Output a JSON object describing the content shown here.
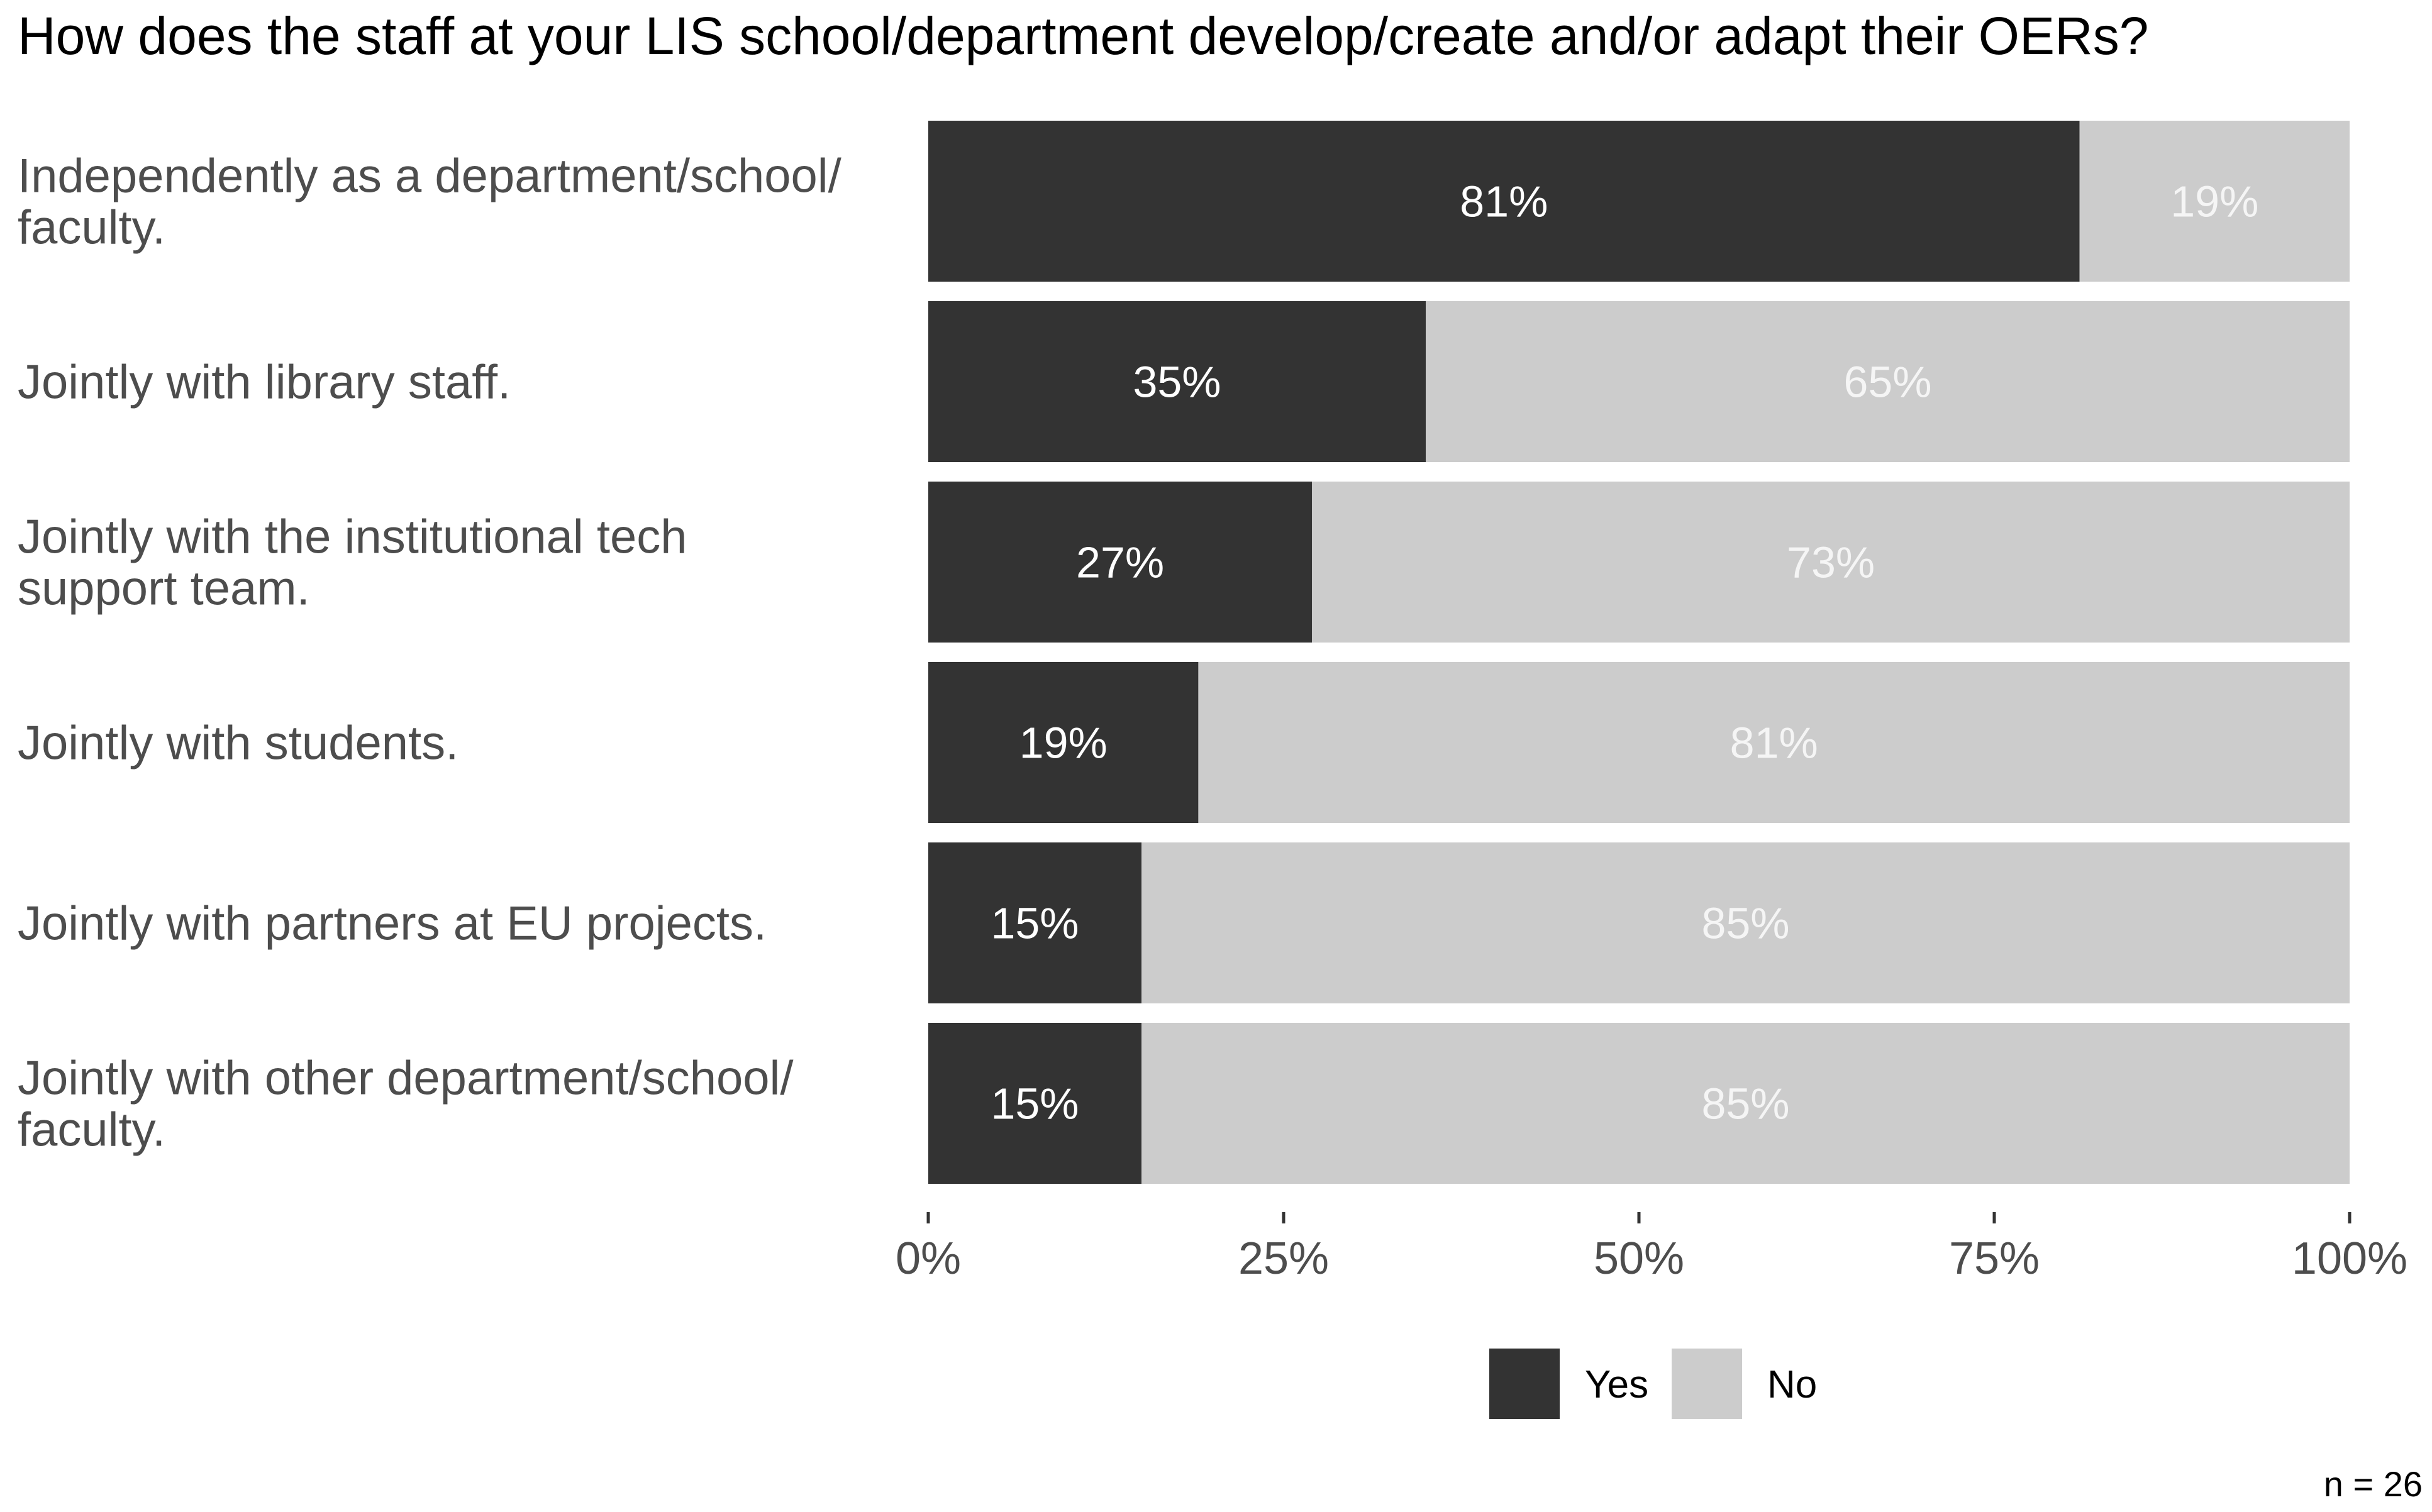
{
  "chart_data": {
    "type": "bar",
    "stacked": true,
    "orientation": "horizontal",
    "title": "How does the staff at your LIS school/department develop/create and/or adapt their OERs?",
    "categories": [
      [
        "Independently as a department/school/",
        "faculty."
      ],
      [
        "Jointly with library staff."
      ],
      [
        "Jointly with the institutional tech",
        "support team."
      ],
      [
        "Jointly with students."
      ],
      [
        "Jointly with partners at EU projects."
      ],
      [
        "Jointly with other department/school/",
        "faculty."
      ]
    ],
    "series": [
      {
        "name": "Yes",
        "color": "#333333",
        "label_color": "#ffffff",
        "values": [
          81,
          35,
          27,
          19,
          15,
          15
        ],
        "labels": [
          "81%",
          "35%",
          "27%",
          "19%",
          "15%",
          "15%"
        ]
      },
      {
        "name": "No",
        "color": "#cccccc",
        "label_color": "#f5f5f5",
        "values": [
          19,
          65,
          73,
          81,
          85,
          85
        ],
        "labels": [
          "19%",
          "65%",
          "73%",
          "81%",
          "85%",
          "85%"
        ]
      }
    ],
    "xlim": [
      0,
      100
    ],
    "xticks": [
      0,
      25,
      50,
      75,
      100
    ],
    "xtick_labels": [
      "0%",
      "25%",
      "50%",
      "75%",
      "100%"
    ],
    "xlabel": "",
    "ylabel": "",
    "grid": false,
    "legend": [
      "Yes",
      "No"
    ],
    "legend_position": "bottom",
    "note": "n = 26"
  }
}
